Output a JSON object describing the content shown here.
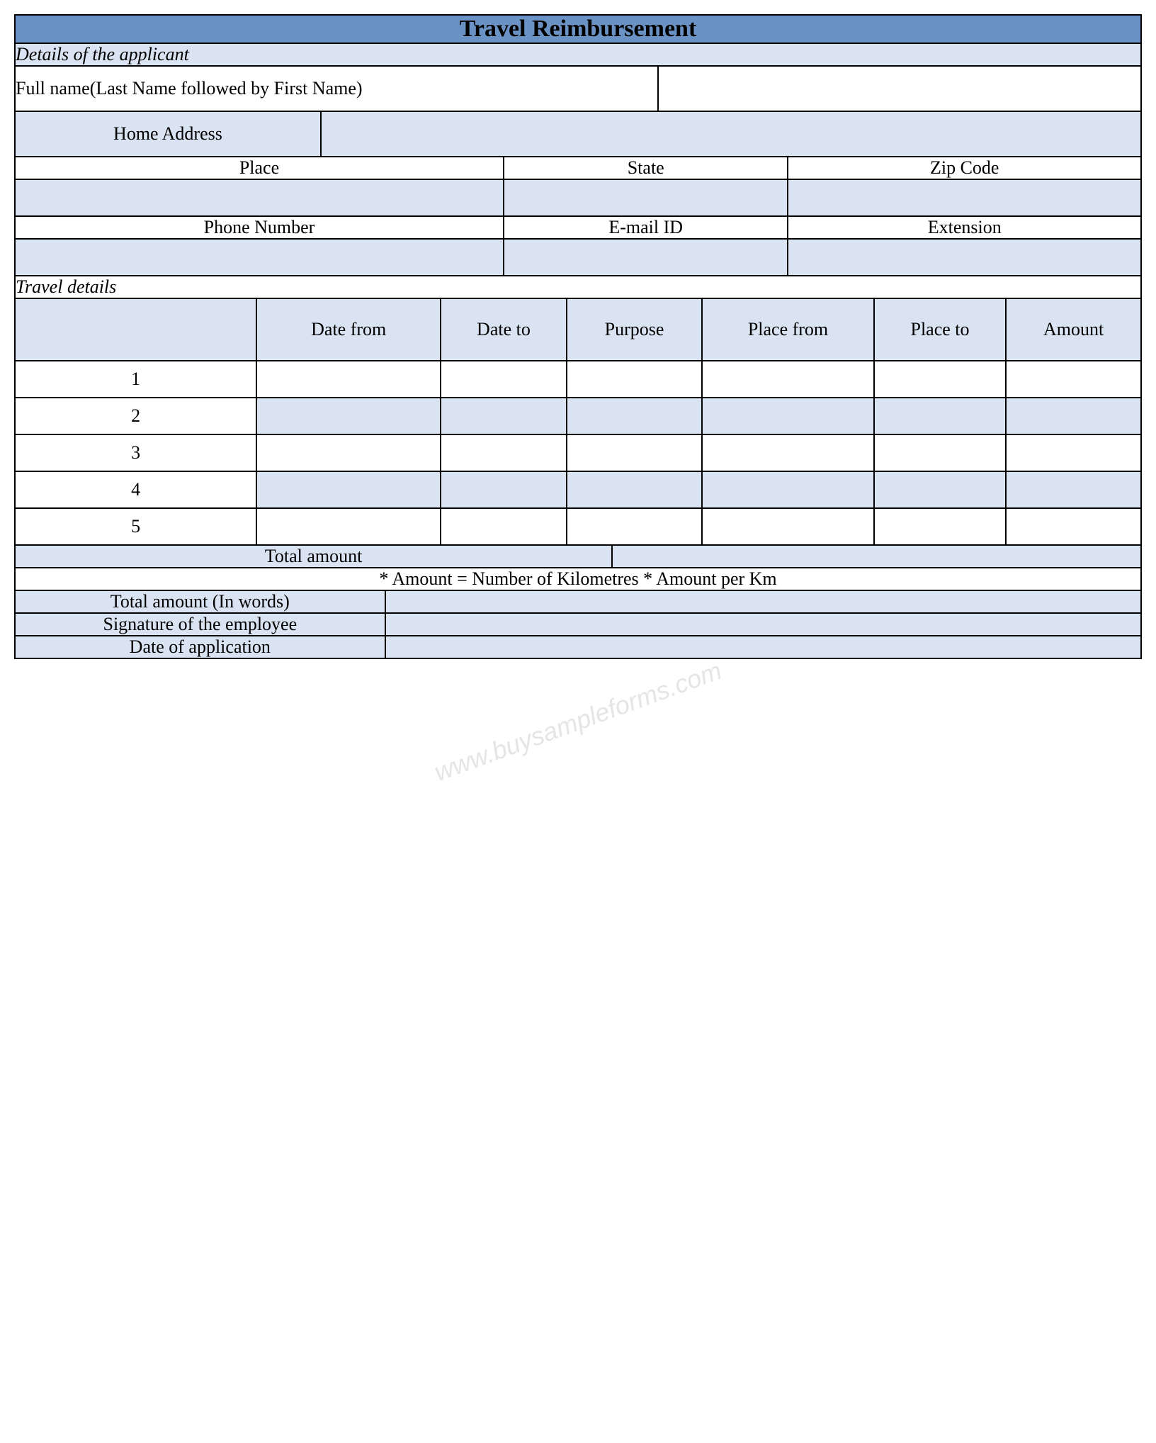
{
  "title": "Travel Reimbursement",
  "section1": {
    "header": "Details of the applicant",
    "full_name_label": "Full name(Last Name followed by First Name)",
    "full_name_value": "",
    "home_address_label": "Home Address",
    "home_address_value": "",
    "place_label": "Place",
    "state_label": "State",
    "zip_label": "Zip Code",
    "place_value": "",
    "state_value": "",
    "zip_value": "",
    "phone_label": "Phone Number",
    "email_label": "E-mail ID",
    "ext_label": "Extension",
    "phone_value": "",
    "email_value": "",
    "ext_value": ""
  },
  "section2": {
    "header": "Travel details",
    "columns": {
      "blank": "",
      "date_from": "Date from",
      "date_to": "Date to",
      "purpose": "Purpose",
      "place_from": "Place from",
      "place_to": "Place to",
      "amount": "Amount"
    },
    "rows": {
      "r1": "1",
      "r2": "2",
      "r3": "3",
      "r4": "4",
      "r5": "5"
    },
    "total_amount_label": "Total amount",
    "total_amount_value": "",
    "note": "* Amount = Number of Kilometres * Amount per Km",
    "total_words_label": "Total amount (In words)",
    "total_words_value": "",
    "signature_label": "Signature of the employee",
    "signature_value": "",
    "date_app_label": "Date of application",
    "date_app_value": ""
  },
  "watermark": "www.buysampleforms.com",
  "colors": {
    "header_bg": "#6a92c4",
    "light_bg": "#d9e3f1",
    "white": "#ffffff",
    "border": "#000000"
  }
}
